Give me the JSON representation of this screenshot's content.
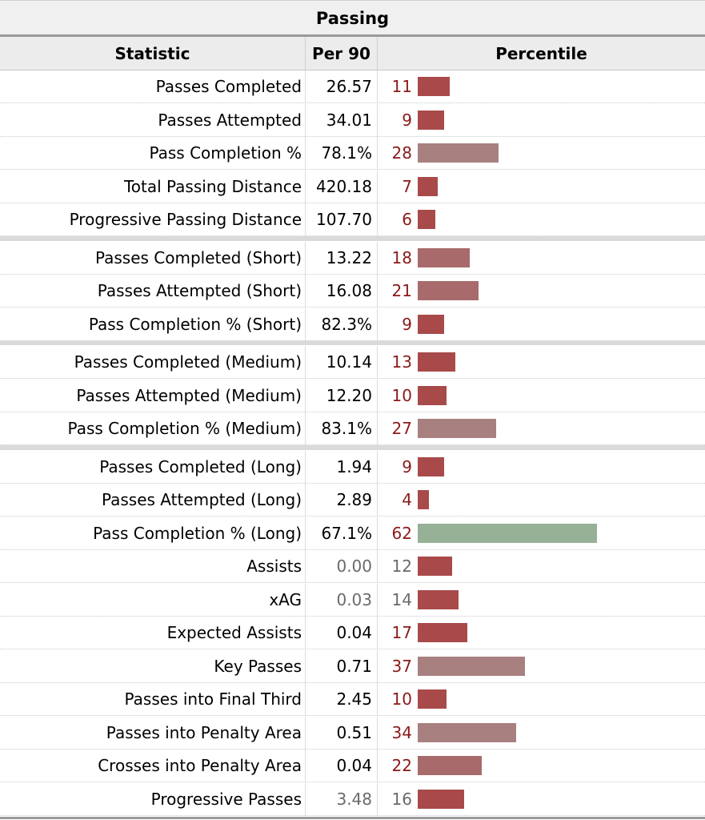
{
  "table": {
    "title": "Passing",
    "columns": [
      "Statistic",
      "Per 90",
      "Percentile"
    ]
  },
  "colors": {
    "low": "#a84a4a",
    "mid_low": "#a86a6a",
    "mid": "#a88080",
    "high": "#96b196"
  },
  "chart_data": {
    "type": "bar",
    "title": "Passing",
    "xlabel": "Percentile",
    "xlim": [
      0,
      100
    ],
    "categories": [
      "Passes Completed",
      "Passes Attempted",
      "Pass Completion %",
      "Total Passing Distance",
      "Progressive Passing Distance",
      "Passes Completed (Short)",
      "Passes Attempted (Short)",
      "Pass Completion % (Short)",
      "Passes Completed (Medium)",
      "Passes Attempted (Medium)",
      "Pass Completion % (Medium)",
      "Passes Completed (Long)",
      "Passes Attempted (Long)",
      "Pass Completion % (Long)",
      "Assists",
      "xAG",
      "Expected Assists",
      "Key Passes",
      "Passes into Final Third",
      "Passes into Penalty Area",
      "Crosses into Penalty Area",
      "Progressive Passes"
    ],
    "per90": [
      "26.57",
      "34.01",
      "78.1%",
      "420.18",
      "107.70",
      "13.22",
      "16.08",
      "82.3%",
      "10.14",
      "12.20",
      "83.1%",
      "1.94",
      "2.89",
      "67.1%",
      "0.00",
      "0.03",
      "0.04",
      "0.71",
      "2.45",
      "0.51",
      "0.04",
      "3.48"
    ],
    "percentile": [
      11,
      9,
      28,
      7,
      6,
      18,
      21,
      9,
      13,
      10,
      27,
      9,
      4,
      62,
      12,
      14,
      17,
      37,
      10,
      34,
      22,
      16
    ],
    "muted": [
      false,
      false,
      false,
      false,
      false,
      false,
      false,
      false,
      false,
      false,
      false,
      false,
      false,
      false,
      true,
      true,
      false,
      false,
      false,
      false,
      false,
      true
    ]
  }
}
